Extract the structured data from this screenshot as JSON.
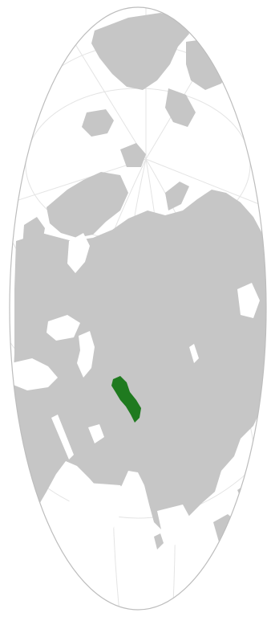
{
  "map": {
    "projection": "orthographic",
    "highlighted_region": "Uzbekistan",
    "colors": {
      "background": "#ffffff",
      "ocean": "#ffffff",
      "land": "#c6c6c6",
      "highlight": "#1f7a1f",
      "graticule": "#e4e4e4",
      "outline": "#bdbdbd"
    }
  }
}
